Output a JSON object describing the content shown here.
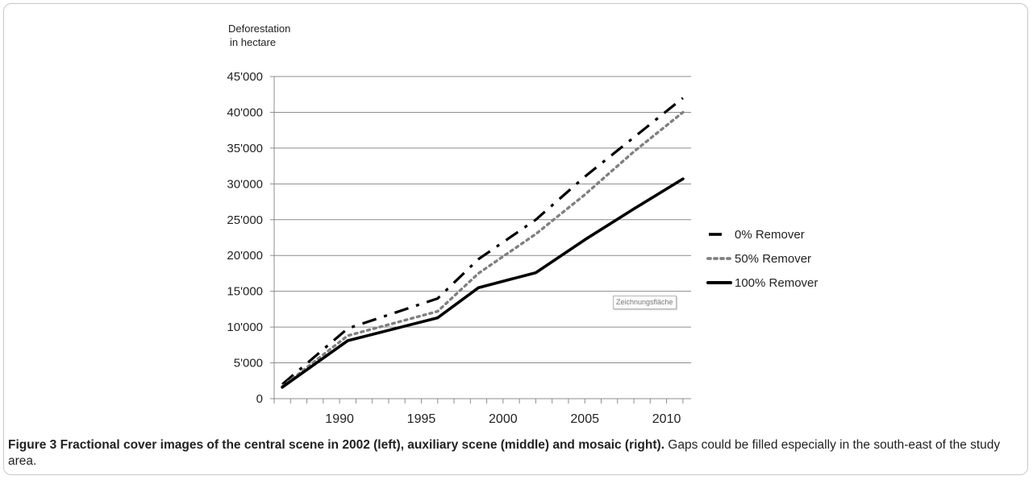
{
  "chart_data": {
    "type": "line",
    "ylabel_line1": "Deforestation",
    "ylabel_line2": "in hectare",
    "xlabel": "",
    "x_ticks": [
      "1990",
      "1995",
      "2000",
      "2005",
      "2010"
    ],
    "y_ticks": [
      "0",
      "5'000",
      "10'000",
      "15'000",
      "20'000",
      "25'000",
      "30'000",
      "35'000",
      "40'000",
      "45'000"
    ],
    "ylim": [
      0,
      45000
    ],
    "xlim": [
      1986,
      2011.5
    ],
    "grid": "horizontal",
    "legend_position": "right",
    "series": [
      {
        "name": "0% Remover",
        "style": "dash-dot",
        "color": "#000000",
        "x": [
          1986.5,
          1990.5,
          1996,
          1998.5,
          2002,
          2005,
          2008,
          2011
        ],
        "y": [
          2000,
          9800,
          14000,
          19500,
          25000,
          31000,
          36500,
          42000
        ]
      },
      {
        "name": "50% Remover",
        "style": "dotted",
        "color": "#808080",
        "x": [
          1986.5,
          1990.5,
          1996,
          1998.5,
          2002,
          2005,
          2008,
          2011
        ],
        "y": [
          1700,
          8800,
          12200,
          17500,
          23000,
          28500,
          34500,
          40000
        ]
      },
      {
        "name": "100% Remover",
        "style": "solid",
        "color": "#000000",
        "x": [
          1986.5,
          1990.5,
          1996,
          1998.5,
          2002,
          2005,
          2008,
          2011
        ],
        "y": [
          1600,
          8100,
          11300,
          15500,
          17600,
          22200,
          26500,
          30700
        ]
      }
    ]
  },
  "plot_area_tooltip": "Zeichnungsfläche",
  "caption": {
    "bold": "Figure 3 Fractional cover images of the central scene in 2002 (left), auxiliary scene (middle) and mosaic (right).",
    "text": " Gaps could be filled especially in the south-east of the study area."
  }
}
